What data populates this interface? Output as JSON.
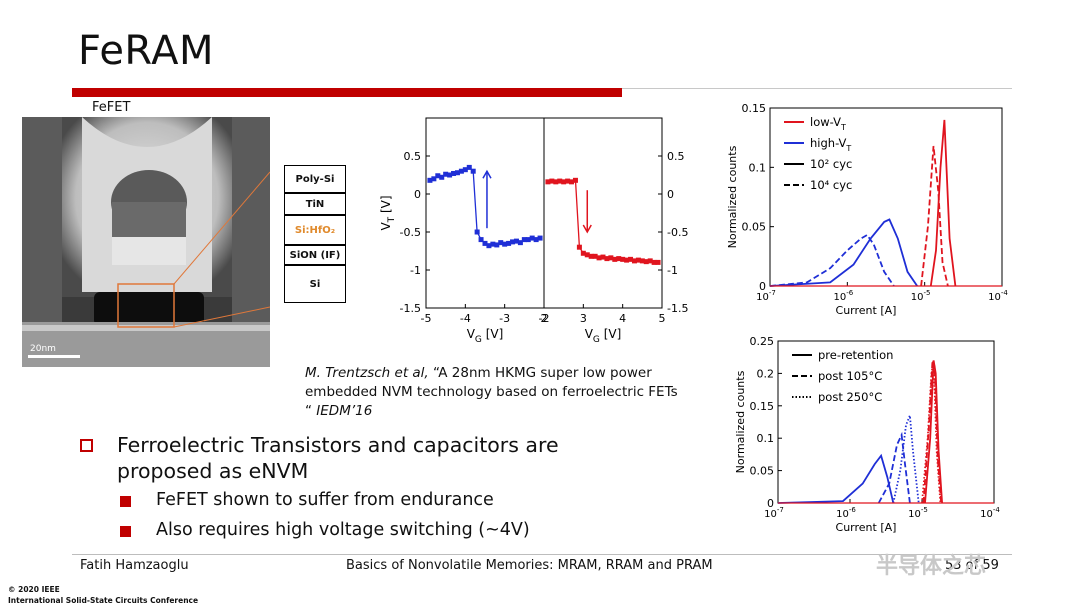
{
  "slide": {
    "title": "FeRAM",
    "fefet_label": "FeFET",
    "tem_scale": "20nm",
    "stack_layers": [
      "Poly-Si",
      "TiN",
      "Si:HfO₂",
      "SiON (IF)",
      "Si"
    ],
    "reference": {
      "authors": "M. Trentzsch et al, ",
      "quote": "“A 28nm HKMG super low power embedded NVM technology based on ferroelectric FETs “ ",
      "venue": "IEDM’16"
    },
    "bullets": {
      "main": "Ferroelectric Transistors and capacitors are proposed as eNVM",
      "sub1": "FeFET shown to suffer from endurance",
      "sub2": "Also requires high voltage switching (~4V)"
    },
    "footer": {
      "author": "Fatih Hamzaoglu",
      "course": "Basics of Nonvolatile Memories: MRAM, RRAM and PRAM",
      "page": "53 of 59",
      "copyright1": "© 2020 IEEE",
      "copyright2": "International Solid-State Circuits Conference",
      "watermark": "半导体之芯"
    }
  },
  "chart_data": [
    {
      "type": "scatter",
      "xlabel": "VG [V]",
      "ylabel": "VT [V]",
      "xlim": [
        -5,
        -2
      ],
      "ylim": [
        -1.5,
        1
      ],
      "x_ticks": [
        "-5",
        "-4",
        "-3",
        "-2"
      ],
      "y_ticks": [
        "0.5",
        "0",
        "-0.5",
        "-1",
        "-1.5"
      ],
      "series": [
        {
          "color": "#1f2fd6",
          "x": [
            -4.9,
            -4.8,
            -4.7,
            -4.6,
            -4.5,
            -4.4,
            -4.3,
            -4.2,
            -4.1,
            -4.0,
            -3.9,
            -3.8,
            -3.7,
            -3.6,
            -3.5,
            -3.4,
            -3.3,
            -3.2,
            -3.1,
            -3.0,
            -2.9,
            -2.8,
            -2.7,
            -2.6,
            -2.5,
            -2.4,
            -2.3,
            -2.2,
            -2.1
          ],
          "y": [
            0.18,
            0.2,
            0.24,
            0.22,
            0.26,
            0.25,
            0.27,
            0.28,
            0.3,
            0.32,
            0.35,
            0.3,
            -0.5,
            -0.6,
            -0.65,
            -0.68,
            -0.66,
            -0.67,
            -0.64,
            -0.66,
            -0.65,
            -0.63,
            -0.62,
            -0.64,
            -0.6,
            -0.6,
            -0.58,
            -0.6,
            -0.58
          ]
        }
      ],
      "arrow": "up"
    },
    {
      "type": "scatter",
      "xlabel": "VG [V]",
      "ylabel": "",
      "xlim": [
        2,
        5
      ],
      "ylim": [
        -1.5,
        1
      ],
      "x_ticks": [
        "2",
        "3",
        "4",
        "5"
      ],
      "y_ticks": [
        "0.5",
        "0",
        "-0.5",
        "-1",
        "-1.5"
      ],
      "series": [
        {
          "color": "#e0141e",
          "x": [
            2.1,
            2.2,
            2.3,
            2.4,
            2.5,
            2.6,
            2.7,
            2.8,
            2.9,
            3.0,
            3.1,
            3.2,
            3.3,
            3.4,
            3.5,
            3.6,
            3.7,
            3.8,
            3.9,
            4.0,
            4.1,
            4.2,
            4.3,
            4.4,
            4.5,
            4.6,
            4.7,
            4.8,
            4.9
          ],
          "y": [
            0.16,
            0.17,
            0.16,
            0.17,
            0.16,
            0.17,
            0.16,
            0.18,
            -0.7,
            -0.78,
            -0.8,
            -0.82,
            -0.82,
            -0.84,
            -0.83,
            -0.85,
            -0.84,
            -0.86,
            -0.85,
            -0.86,
            -0.87,
            -0.86,
            -0.88,
            -0.87,
            -0.88,
            -0.89,
            -0.88,
            -0.9,
            -0.9
          ]
        }
      ],
      "arrow": "down"
    },
    {
      "type": "line",
      "xlabel": "Current [A]",
      "ylabel": "Normalized counts",
      "xscale": "log",
      "xlim": [
        1e-07,
        0.0001
      ],
      "ylim": [
        0,
        0.15
      ],
      "y_ticks": [
        "0",
        "0.05",
        "0.1",
        "0.15"
      ],
      "legend": [
        "low-VT",
        "high-VT",
        "10² cyc",
        "10⁴ cyc"
      ],
      "series": [
        {
          "name": "low-VT 10² cyc",
          "color": "#e0141e",
          "dash": "solid",
          "x": [
            1.2e-05,
            1.4e-05,
            1.6e-05,
            1.8e-05,
            2.1e-05,
            2.5e-05
          ],
          "y": [
            0,
            0.03,
            0.1,
            0.14,
            0.04,
            0
          ]
        },
        {
          "name": "low-VT 10⁴ cyc",
          "color": "#e0141e",
          "dash": "dashed",
          "x": [
            9e-06,
            1.1e-05,
            1.3e-05,
            1.5e-05,
            1.7e-05,
            2e-05
          ],
          "y": [
            0,
            0.05,
            0.118,
            0.08,
            0.02,
            0
          ]
        },
        {
          "name": "high-VT 10² cyc",
          "color": "#1f2fd6",
          "dash": "solid",
          "x": [
            1e-07,
            6e-07,
            1.2e-06,
            2e-06,
            3e-06,
            3.5e-06,
            4.5e-06,
            6e-06,
            8e-06
          ],
          "y": [
            0,
            0.003,
            0.018,
            0.04,
            0.054,
            0.056,
            0.04,
            0.012,
            0
          ]
        },
        {
          "name": "high-VT 10⁴ cyc",
          "color": "#1f2fd6",
          "dash": "dashed",
          "x": [
            1e-07,
            3e-07,
            6e-07,
            1e-06,
            1.5e-06,
            1.8e-06,
            2.2e-06,
            3e-06,
            4e-06
          ],
          "y": [
            0,
            0.003,
            0.015,
            0.03,
            0.04,
            0.043,
            0.035,
            0.012,
            0
          ]
        }
      ]
    },
    {
      "type": "line",
      "xlabel": "Current [A]",
      "ylabel": "Normalized counts",
      "xscale": "log",
      "xlim": [
        1e-07,
        0.0001
      ],
      "ylim": [
        0,
        0.25
      ],
      "y_ticks": [
        "0",
        "0.05",
        "0.1",
        "0.15",
        "0.2",
        "0.25"
      ],
      "legend": [
        "pre-retention",
        "post 105°C",
        "post 250°C"
      ],
      "series": [
        {
          "name": "pre-retention blue",
          "color": "#1f2fd6",
          "dash": "solid",
          "x": [
            1e-07,
            8e-07,
            1.5e-06,
            2.2e-06,
            2.7e-06,
            3.3e-06,
            4e-06
          ],
          "y": [
            0,
            0.003,
            0.03,
            0.06,
            0.073,
            0.04,
            0
          ]
        },
        {
          "name": "post 105°C blue",
          "color": "#1f2fd6",
          "dash": "dashed",
          "x": [
            2.5e-06,
            3.5e-06,
            4.5e-06,
            5.2e-06,
            5.8e-06,
            6.8e-06
          ],
          "y": [
            0,
            0.03,
            0.09,
            0.105,
            0.06,
            0
          ]
        },
        {
          "name": "post 250°C blue",
          "color": "#1f2fd6",
          "dash": "dotted",
          "x": [
            4e-06,
            5e-06,
            6e-06,
            6.8e-06,
            7.5e-06,
            9e-06
          ],
          "y": [
            0,
            0.05,
            0.12,
            0.135,
            0.08,
            0
          ]
        },
        {
          "name": "pre-retention red",
          "color": "#e0141e",
          "dash": "solid",
          "x": [
            1.1e-05,
            1.3e-05,
            1.45e-05,
            1.55e-05,
            1.7e-05,
            1.9e-05
          ],
          "y": [
            0,
            0.1,
            0.22,
            0.2,
            0.08,
            0
          ]
        },
        {
          "name": "post 105°C red",
          "color": "#e0141e",
          "dash": "dashed",
          "x": [
            1.05e-05,
            1.25e-05,
            1.4e-05,
            1.5e-05,
            1.65e-05,
            1.85e-05
          ],
          "y": [
            0,
            0.12,
            0.22,
            0.21,
            0.07,
            0
          ]
        },
        {
          "name": "post 250°C red",
          "color": "#e0141e",
          "dash": "dotted",
          "x": [
            1e-05,
            1.2e-05,
            1.35e-05,
            1.45e-05,
            1.6e-05,
            1.8e-05
          ],
          "y": [
            0,
            0.1,
            0.2,
            0.22,
            0.08,
            0
          ]
        }
      ]
    }
  ]
}
